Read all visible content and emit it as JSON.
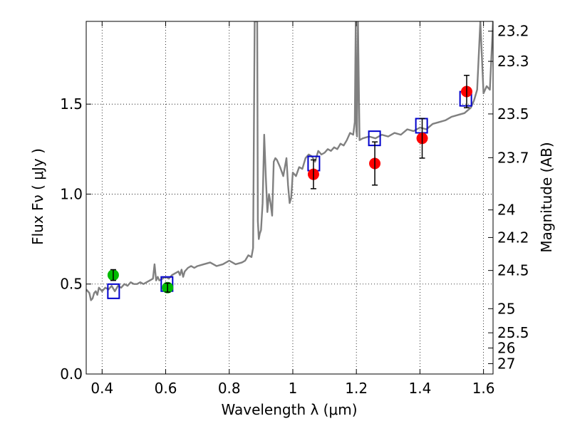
{
  "chart_data": {
    "type": "scatter",
    "xlabel": "Wavelength  λ (μm)",
    "ylabel": "Flux  Fν ( μJy )",
    "ylabel_right": "Magnitude (AB)",
    "xlim": [
      0.35,
      1.63
    ],
    "ylim": [
      0.0,
      1.96
    ],
    "grid": true,
    "x_ticks": [
      {
        "value": 0.4,
        "label": "0.4"
      },
      {
        "value": 0.6,
        "label": "0.6"
      },
      {
        "value": 0.8,
        "label": "0.8"
      },
      {
        "value": 1.0,
        "label": "1"
      },
      {
        "value": 1.2,
        "label": "1.2"
      },
      {
        "value": 1.4,
        "label": "1.4"
      },
      {
        "value": 1.6,
        "label": "1.6"
      }
    ],
    "y_ticks": [
      {
        "value": 0.0,
        "label": "0.0"
      },
      {
        "value": 0.5,
        "label": "0.5"
      },
      {
        "value": 1.0,
        "label": "1.0"
      },
      {
        "value": 1.5,
        "label": "1.5"
      }
    ],
    "mag_ticks": [
      {
        "value": 23.2,
        "label": "23.2"
      },
      {
        "value": 23.3,
        "label": "23.3"
      },
      {
        "value": 23.5,
        "label": "23.5"
      },
      {
        "value": 23.7,
        "label": "23.7"
      },
      {
        "value": 24,
        "label": "24"
      },
      {
        "value": 24.2,
        "label": "24.2"
      },
      {
        "value": 24.5,
        "label": "24.5"
      },
      {
        "value": 25,
        "label": "25"
      },
      {
        "value": 25.5,
        "label": "25.5"
      },
      {
        "value": 26,
        "label": "26"
      },
      {
        "value": 27,
        "label": "27"
      }
    ],
    "series": [
      {
        "role": "model-spectrum",
        "style": "line",
        "color": "#808080",
        "x": [
          0.35,
          0.36,
          0.365,
          0.37,
          0.375,
          0.38,
          0.385,
          0.39,
          0.4,
          0.41,
          0.42,
          0.43,
          0.44,
          0.45,
          0.46,
          0.47,
          0.48,
          0.49,
          0.5,
          0.51,
          0.52,
          0.53,
          0.54,
          0.55,
          0.56,
          0.565,
          0.57,
          0.575,
          0.58,
          0.59,
          0.6,
          0.61,
          0.62,
          0.63,
          0.64,
          0.645,
          0.65,
          0.655,
          0.66,
          0.67,
          0.68,
          0.69,
          0.7,
          0.72,
          0.74,
          0.76,
          0.78,
          0.8,
          0.82,
          0.84,
          0.85,
          0.86,
          0.87,
          0.875,
          0.88,
          0.885,
          0.888,
          0.89,
          0.893,
          0.896,
          0.9,
          0.905,
          0.91,
          0.915,
          0.92,
          0.925,
          0.93,
          0.935,
          0.94,
          0.945,
          0.95,
          0.96,
          0.97,
          0.98,
          0.985,
          0.99,
          0.995,
          1.0,
          1.01,
          1.02,
          1.03,
          1.04,
          1.05,
          1.06,
          1.07,
          1.08,
          1.09,
          1.1,
          1.11,
          1.12,
          1.13,
          1.14,
          1.15,
          1.16,
          1.17,
          1.18,
          1.19,
          1.195,
          1.198,
          1.2,
          1.202,
          1.205,
          1.21,
          1.22,
          1.24,
          1.26,
          1.28,
          1.3,
          1.32,
          1.34,
          1.36,
          1.38,
          1.4,
          1.42,
          1.44,
          1.46,
          1.48,
          1.5,
          1.52,
          1.54,
          1.56,
          1.57,
          1.58,
          1.59,
          1.6,
          1.61,
          1.62,
          1.63
        ],
        "y": [
          0.47,
          0.45,
          0.41,
          0.42,
          0.45,
          0.46,
          0.44,
          0.48,
          0.46,
          0.48,
          0.47,
          0.49,
          0.46,
          0.49,
          0.48,
          0.5,
          0.49,
          0.51,
          0.5,
          0.5,
          0.51,
          0.5,
          0.51,
          0.52,
          0.53,
          0.61,
          0.52,
          0.54,
          0.52,
          0.53,
          0.54,
          0.53,
          0.55,
          0.56,
          0.57,
          0.55,
          0.58,
          0.54,
          0.57,
          0.59,
          0.6,
          0.59,
          0.6,
          0.61,
          0.62,
          0.6,
          0.61,
          0.63,
          0.61,
          0.62,
          0.63,
          0.66,
          0.65,
          0.7,
          1.96,
          1.96,
          1.96,
          0.85,
          0.75,
          0.78,
          0.8,
          0.95,
          1.33,
          1.1,
          0.9,
          1.0,
          0.95,
          0.88,
          1.18,
          1.2,
          1.19,
          1.15,
          1.1,
          1.2,
          1.05,
          0.95,
          0.98,
          1.12,
          1.1,
          1.15,
          1.14,
          1.2,
          1.22,
          1.21,
          1.18,
          1.24,
          1.22,
          1.23,
          1.25,
          1.24,
          1.26,
          1.25,
          1.28,
          1.27,
          1.3,
          1.34,
          1.33,
          1.4,
          1.96,
          1.35,
          1.32,
          1.96,
          1.3,
          1.31,
          1.32,
          1.31,
          1.33,
          1.32,
          1.34,
          1.33,
          1.36,
          1.35,
          1.37,
          1.36,
          1.39,
          1.4,
          1.41,
          1.43,
          1.44,
          1.45,
          1.48,
          1.52,
          1.58,
          1.96,
          1.56,
          1.6,
          1.58,
          1.96
        ],
        "values": [
          0.47,
          0.45,
          0.41,
          0.42,
          0.45,
          0.46,
          0.44,
          0.48,
          0.46,
          0.48,
          0.47,
          0.49,
          0.46,
          0.49,
          0.48,
          0.5,
          0.49,
          0.51,
          0.5,
          0.5,
          0.51,
          0.5,
          0.51,
          0.52,
          0.53,
          0.61,
          0.52,
          0.54,
          0.52,
          0.53,
          0.54,
          0.53,
          0.55,
          0.56,
          0.57,
          0.55,
          0.58,
          0.54,
          0.57,
          0.59,
          0.6,
          0.59,
          0.6,
          0.61,
          0.62,
          0.6,
          0.61,
          0.63,
          0.61,
          0.62,
          0.63,
          0.66,
          0.65,
          0.7,
          1.96,
          1.96,
          1.96,
          0.85,
          0.75,
          0.78,
          0.8,
          0.95,
          1.33,
          1.1,
          0.9,
          1.0,
          0.95,
          0.88,
          1.18,
          1.2,
          1.19,
          1.15,
          1.1,
          1.2,
          1.05,
          0.95,
          0.98,
          1.12,
          1.1,
          1.15,
          1.14,
          1.2,
          1.22,
          1.21,
          1.18,
          1.24,
          1.22,
          1.23,
          1.25,
          1.24,
          1.26,
          1.25,
          1.28,
          1.27,
          1.3,
          1.34,
          1.33,
          1.4,
          1.96,
          1.35,
          1.32,
          1.96,
          1.3,
          1.31,
          1.32,
          1.31,
          1.33,
          1.32,
          1.34,
          1.33,
          1.36,
          1.35,
          1.37,
          1.36,
          1.39,
          1.4,
          1.41,
          1.43,
          1.44,
          1.45,
          1.48,
          1.52,
          1.58,
          1.96,
          1.56,
          1.6,
          1.58,
          1.96
        ]
      },
      {
        "role": "model-synthetic-photometry",
        "style": "open-square",
        "color": "#0000cc",
        "x": [
          0.436,
          0.604,
          1.066,
          1.257,
          1.405,
          1.544
        ],
        "y": [
          0.46,
          0.5,
          1.17,
          1.31,
          1.38,
          1.53
        ],
        "values": [
          0.46,
          0.5,
          1.17,
          1.31,
          1.38,
          1.53
        ]
      },
      {
        "role": "observed-optical",
        "style": "filled-circle",
        "color": "#00bb00",
        "x": [
          0.435,
          0.606
        ],
        "y": [
          0.55,
          0.48
        ],
        "values": [
          0.55,
          0.48
        ],
        "err": [
          0.03,
          0.025
        ]
      },
      {
        "role": "observed-nir",
        "style": "filled-circle",
        "color": "#ff0000",
        "x": [
          1.065,
          1.258,
          1.407,
          1.547
        ],
        "y": [
          1.11,
          1.17,
          1.31,
          1.57
        ],
        "values": [
          1.11,
          1.17,
          1.31,
          1.57
        ],
        "err": [
          0.08,
          0.12,
          0.11,
          0.09
        ]
      }
    ]
  }
}
